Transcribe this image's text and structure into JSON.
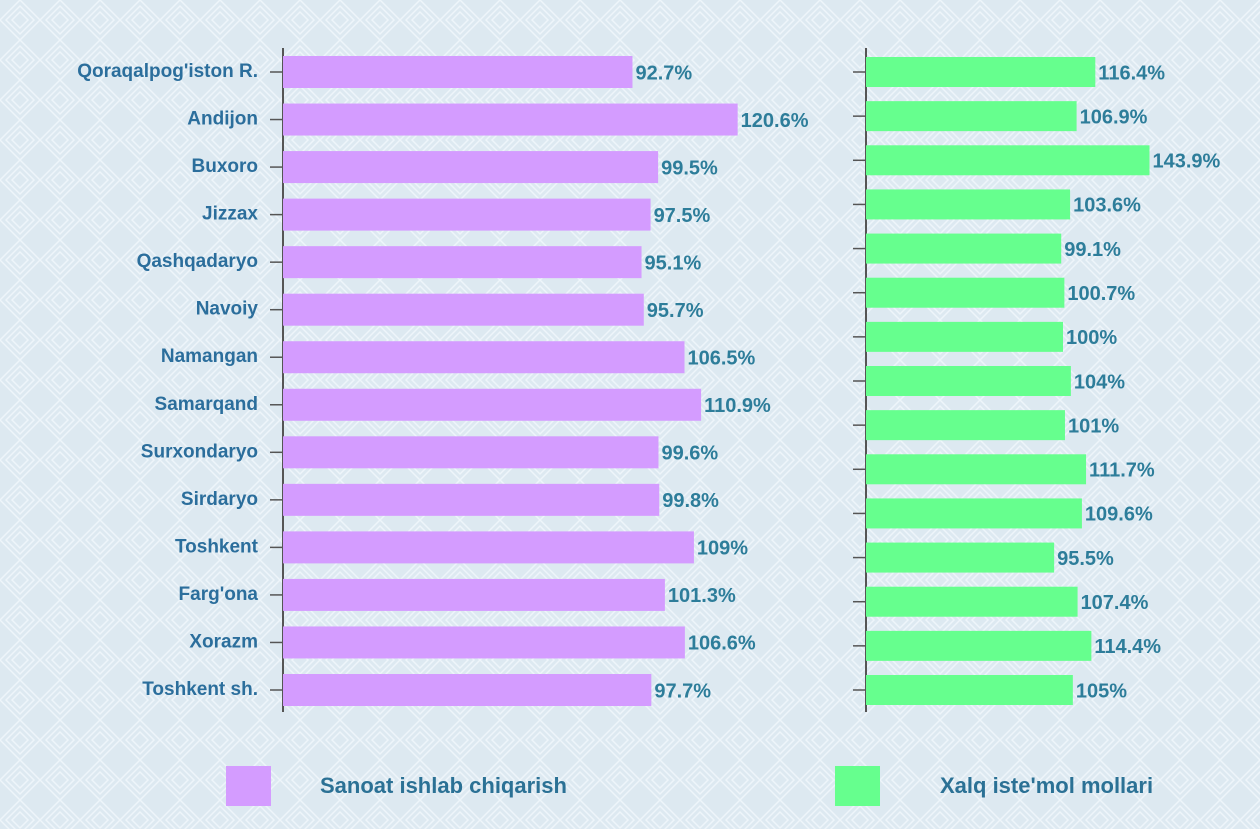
{
  "chart_data": [
    {
      "type": "bar",
      "orientation": "horizontal",
      "categories": [
        "Qoraqalpog'iston R.",
        "Andijon",
        "Buxoro",
        "Jizzax",
        "Qashqadaryo",
        "Navoiy",
        "Namangan",
        "Samarqand",
        "Surxondaryo",
        "Sirdaryo",
        "Toshkent",
        "Farg'ona",
        "Xorazm",
        "Toshkent sh."
      ],
      "series": [
        {
          "name": "Sanoat ishlab chiqarish",
          "color": "#d49cff",
          "values": [
            92.7,
            120.6,
            99.5,
            97.5,
            95.1,
            95.7,
            106.5,
            110.9,
            99.6,
            99.8,
            109,
            101.3,
            106.6,
            97.7
          ],
          "value_labels": [
            "92.7%",
            "120.6%",
            "99.5%",
            "97.5%",
            "95.1%",
            "95.7%",
            "106.5%",
            "110.9%",
            "99.6%",
            "99.8%",
            "109%",
            "101.3%",
            "106.6%",
            "97.7%"
          ]
        }
      ]
    },
    {
      "type": "bar",
      "orientation": "horizontal",
      "series": [
        {
          "name": "Xalq iste'mol mollari",
          "color": "#66ff8e",
          "values": [
            116.4,
            106.9,
            143.9,
            103.6,
            99.1,
            100.7,
            100,
            104,
            101,
            111.7,
            109.6,
            95.5,
            107.4,
            114.4,
            105
          ],
          "value_labels": [
            "116.4%",
            "106.9%",
            "143.9%",
            "103.6%",
            "99.1%",
            "100.7%",
            "100%",
            "104%",
            "101%",
            "111.7%",
            "109.6%",
            "95.5%",
            "107.4%",
            "114.4%",
            "105%"
          ]
        }
      ]
    }
  ]
}
